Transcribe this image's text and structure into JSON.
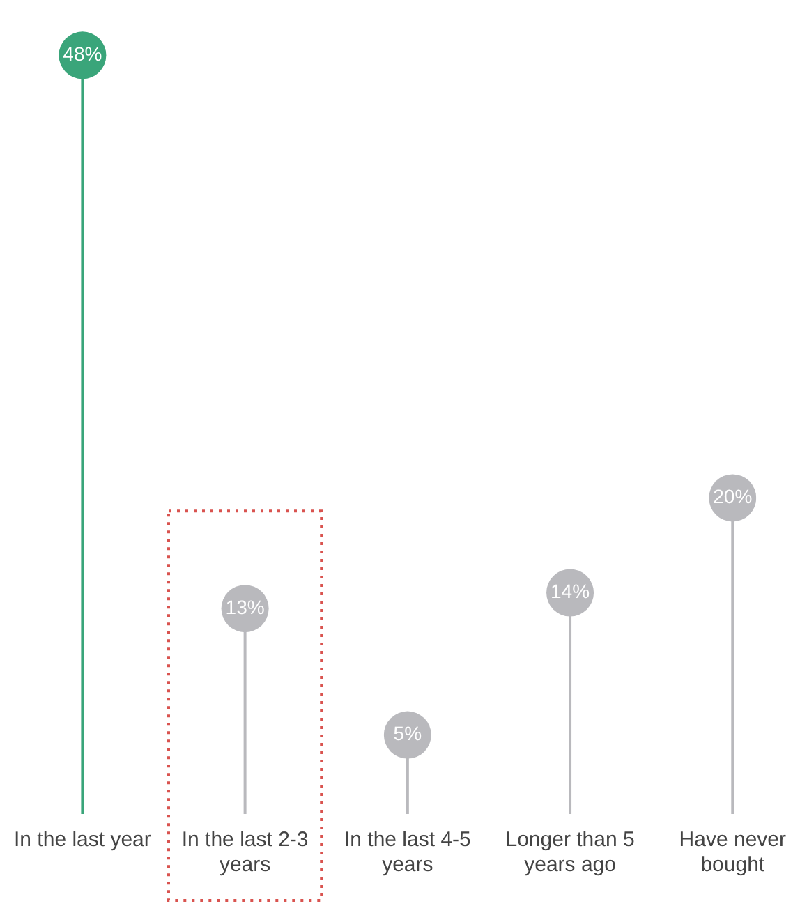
{
  "chart_data": {
    "type": "lollipop",
    "categories": [
      "In the last year",
      "In the last 2-3 years",
      "In the last 4-5 years",
      "Longer than 5 years ago",
      "Have never bought"
    ],
    "values": [
      48,
      13,
      5,
      14,
      20
    ],
    "value_labels": [
      "48%",
      "13%",
      "5%",
      "14%",
      "20%"
    ],
    "colors": [
      "#3aa57a",
      "#b9b9bd",
      "#b9b9bd",
      "#b9b9bd",
      "#b9b9bd"
    ],
    "grid": false,
    "legend": false
  }
}
